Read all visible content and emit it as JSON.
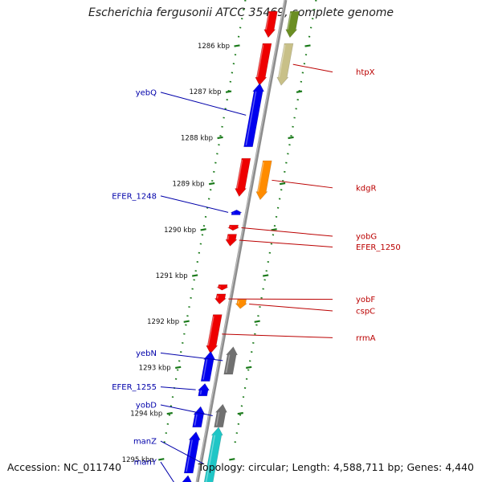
{
  "title": "Escherichia fergusonii ATCC 35469, complete genome",
  "footer": {
    "accession_label": "Accession:",
    "accession": "NC_011740",
    "topology_label": "Topology:",
    "topology": "circular",
    "length_label": "Length:",
    "length": "4,588,711 bp",
    "genes_label": "Genes:",
    "genes": "4,440"
  },
  "colors": {
    "backbone": "#8c8c8c",
    "ruler": "#1a7a1a",
    "left_label": "#0000aa",
    "right_label": "#bb0000",
    "blue": "#0000ee",
    "red": "#ee0000",
    "orange": "#ff8c00",
    "gray": "#707070",
    "cyan": "#1fc6c6",
    "olive": "#6b8e23",
    "tan": "#c8c088"
  },
  "ruler_ticks": [
    {
      "label": "1286 kbp",
      "kbp": 1286
    },
    {
      "label": "1287 kbp",
      "kbp": 1287
    },
    {
      "label": "1288 kbp",
      "kbp": 1288
    },
    {
      "label": "1289 kbp",
      "kbp": 1289
    },
    {
      "label": "1290 kbp",
      "kbp": 1290
    },
    {
      "label": "1291 kbp",
      "kbp": 1291
    },
    {
      "label": "1292 kbp",
      "kbp": 1292
    },
    {
      "label": "1293 kbp",
      "kbp": 1293
    },
    {
      "label": "1294 kbp",
      "kbp": 1294
    },
    {
      "label": "1295 kbp",
      "kbp": 1295
    }
  ],
  "genes": [
    {
      "name": "",
      "strand": "+",
      "lane": 1,
      "start": 1285.25,
      "end": 1285.82,
      "color": "red"
    },
    {
      "name": "",
      "strand": "+",
      "lane": 3,
      "start": 1285.25,
      "end": 1285.82,
      "color": "olive"
    },
    {
      "name": "",
      "strand": "+",
      "lane": 1,
      "start": 1285.95,
      "end": 1286.86,
      "color": "red"
    },
    {
      "name": "htpX",
      "strand": "+",
      "lane": 3,
      "start": 1285.95,
      "end": 1286.86,
      "color": "tan"
    },
    {
      "name": "yebQ",
      "strand": "-",
      "lane": 1,
      "start": 1286.82,
      "end": 1288.2,
      "color": "blue"
    },
    {
      "name": "",
      "strand": "+",
      "lane": 1,
      "start": 1288.45,
      "end": 1289.28,
      "color": "red"
    },
    {
      "name": "kdgR",
      "strand": "+",
      "lane": 3,
      "start": 1288.5,
      "end": 1289.35,
      "color": "orange"
    },
    {
      "name": "EFER_1248",
      "strand": "-",
      "lane": 1,
      "start": 1289.57,
      "end": 1289.68,
      "color": "blue"
    },
    {
      "name": "yobG",
      "strand": "+",
      "lane": 1,
      "start": 1289.9,
      "end": 1290.02,
      "color": "red"
    },
    {
      "name": "EFER_1250",
      "strand": "+",
      "lane": 1,
      "start": 1290.1,
      "end": 1290.36,
      "color": "red"
    },
    {
      "name": "",
      "strand": "+",
      "lane": 1,
      "start": 1291.2,
      "end": 1291.32,
      "color": "red"
    },
    {
      "name": "yobF",
      "strand": "+",
      "lane": 1,
      "start": 1291.4,
      "end": 1291.62,
      "color": "red"
    },
    {
      "name": "cspC",
      "strand": "+",
      "lane": 3,
      "start": 1291.52,
      "end": 1291.72,
      "color": "orange"
    },
    {
      "name": "rrmA",
      "strand": "+",
      "lane": 1,
      "start": 1291.85,
      "end": 1292.7,
      "color": "red"
    },
    {
      "name": "yebN",
      "strand": "-",
      "lane": 3,
      "start": 1292.55,
      "end": 1293.15,
      "color": "gray"
    },
    {
      "name": "",
      "strand": "-",
      "lane": 1,
      "start": 1292.65,
      "end": 1293.3,
      "color": "blue"
    },
    {
      "name": "EFER_1255",
      "strand": "-",
      "lane": 1,
      "start": 1293.35,
      "end": 1293.62,
      "color": "blue"
    },
    {
      "name": "yobD",
      "strand": "-",
      "lane": 3,
      "start": 1293.8,
      "end": 1294.3,
      "color": "gray"
    },
    {
      "name": "",
      "strand": "-",
      "lane": 1,
      "start": 1293.85,
      "end": 1294.3,
      "color": "blue"
    },
    {
      "name": "manZ",
      "strand": "-",
      "lane": 3,
      "start": 1294.3,
      "end": 1295.9,
      "color": "cyan"
    },
    {
      "name": "",
      "strand": "-",
      "lane": 1,
      "start": 1294.4,
      "end": 1295.3,
      "color": "blue"
    },
    {
      "name": "manY",
      "strand": "-",
      "lane": 1,
      "start": 1295.35,
      "end": 1295.9,
      "color": "blue"
    }
  ]
}
